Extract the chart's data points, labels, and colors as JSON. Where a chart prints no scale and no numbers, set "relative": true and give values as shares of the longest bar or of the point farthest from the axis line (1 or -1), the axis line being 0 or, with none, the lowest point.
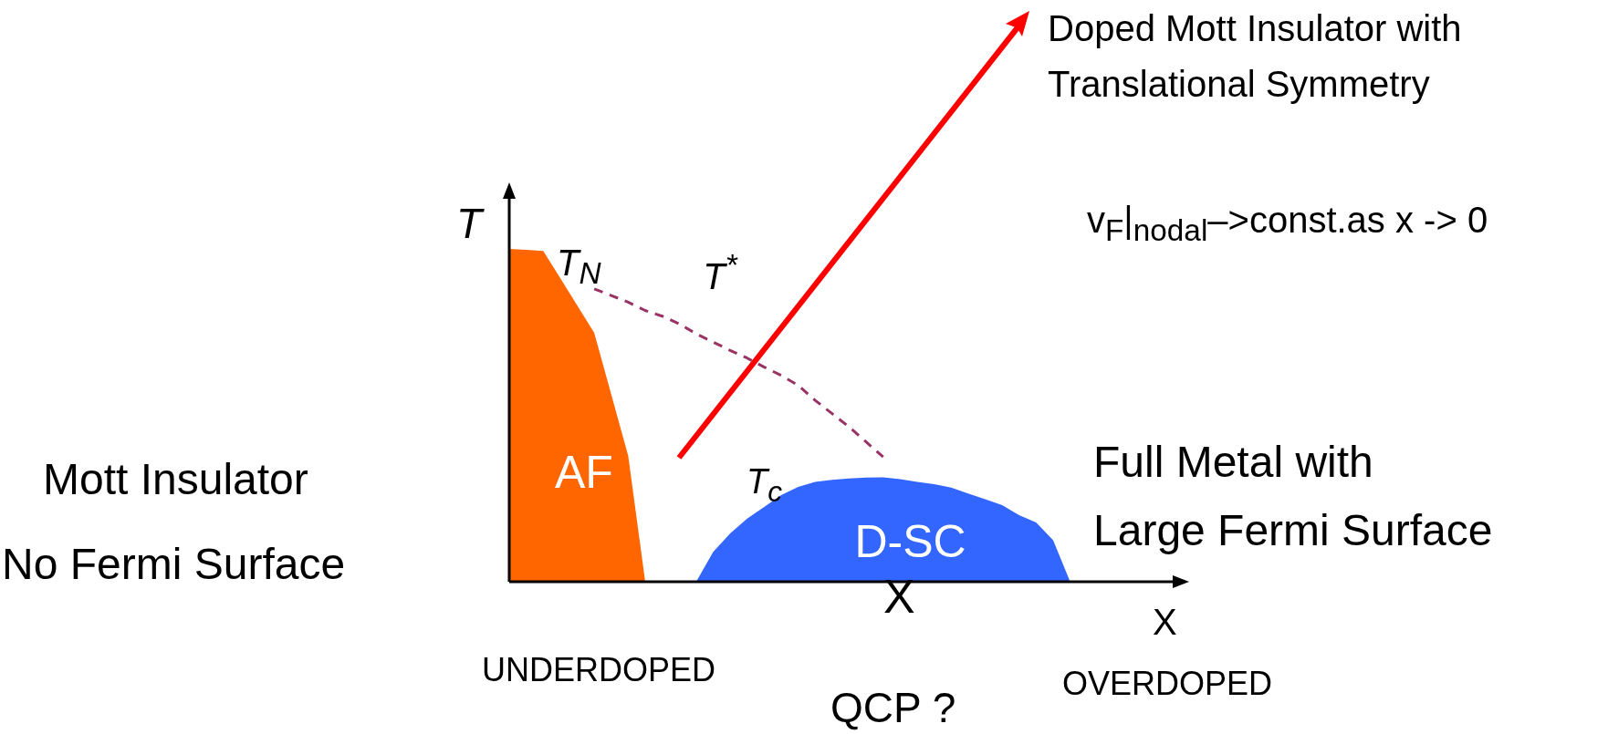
{
  "chart_data": {
    "type": "area",
    "relative": true,
    "xlabel": "X",
    "ylabel": "T",
    "categories": [
      null,
      null,
      null,
      null,
      null,
      null,
      null,
      null,
      null,
      null,
      null,
      null,
      null,
      null,
      null,
      null,
      null,
      null,
      null,
      null,
      null,
      null,
      null,
      null,
      null,
      null,
      null,
      null,
      null,
      null,
      null,
      null,
      null,
      null,
      null,
      null,
      null,
      null,
      null,
      null,
      null
    ],
    "series": [
      {
        "name": "AF",
        "color": "#ff6600",
        "values": [
          1,
          0.997,
          0.994,
          0.912,
          0.83,
          0.748,
          0.563,
          0.378,
          0,
          null,
          null,
          null,
          null,
          null,
          null,
          null,
          null,
          null,
          null,
          null,
          null,
          null,
          null,
          null,
          null,
          null,
          null,
          null,
          null,
          null,
          null,
          null,
          null,
          null,
          null,
          null,
          null,
          null,
          null,
          null,
          null
        ]
      },
      {
        "name": "D-SC",
        "color": "#3366ff",
        "values": [
          null,
          null,
          null,
          null,
          null,
          null,
          null,
          null,
          null,
          null,
          null,
          0,
          0.09,
          0.145,
          0.19,
          0.225,
          0.26,
          0.285,
          0.3,
          0.306,
          0.31,
          0.313,
          0.314,
          0.308,
          0.3,
          0.293,
          0.283,
          0.265,
          0.248,
          0.23,
          0.2,
          0.178,
          0.125,
          0,
          null,
          null,
          null,
          null,
          null,
          null,
          null
        ]
      },
      {
        "name": "T$^{*}$",
        "type": "line",
        "line_style": "dashed",
        "color": "#993366",
        "values": [
          null,
          null,
          null,
          null,
          null,
          0.88,
          0.86,
          0.84,
          0.815,
          0.798,
          0.775,
          0.745,
          0.72,
          0.695,
          0.672,
          0.645,
          0.62,
          0.59,
          0.545,
          0.505,
          0.465,
          0.42,
          0.375,
          null,
          null,
          null,
          null,
          null,
          null,
          null,
          null,
          null,
          null,
          null,
          null,
          null,
          null,
          null,
          null,
          null,
          null
        ]
      }
    ],
    "annotations": [
      "Doped Mott Insulator with",
      "Translational Symmetry",
      "v$_{F}$|$_{nodal}$–>const.as x ->  0",
      "Mott  Insulator",
      "No Fermi Surface",
      "Full Metal with",
      "Large Fermi Surface",
      "UNDERDOPED",
      "QCP ?",
      "OVERDOPED",
      "X",
      "T$_{N}$",
      "T$_{c}$"
    ]
  }
}
